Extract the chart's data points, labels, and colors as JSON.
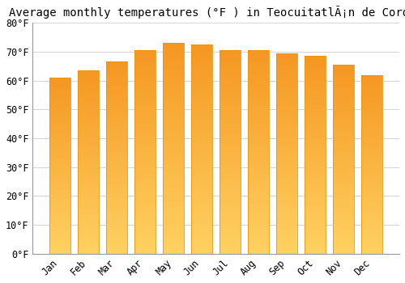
{
  "title": "Average monthly temperatures (°F ) in TeocuitatlÃ¡n de Corona",
  "months": [
    "Jan",
    "Feb",
    "Mar",
    "Apr",
    "May",
    "Jun",
    "Jul",
    "Aug",
    "Sep",
    "Oct",
    "Nov",
    "Dec"
  ],
  "values": [
    61,
    63.5,
    66.5,
    70.5,
    73,
    72.5,
    70.5,
    70.5,
    69.5,
    68.5,
    65.5,
    62
  ],
  "bar_color_top": "#F5A623",
  "bar_color_bottom": "#FFD060",
  "bar_edge_color": "#E8960A",
  "background_color": "#FFFFFF",
  "grid_color": "#CCCCCC",
  "ylim": [
    0,
    80
  ],
  "ytick_step": 10,
  "title_fontsize": 10,
  "tick_fontsize": 8.5,
  "font_family": "monospace"
}
